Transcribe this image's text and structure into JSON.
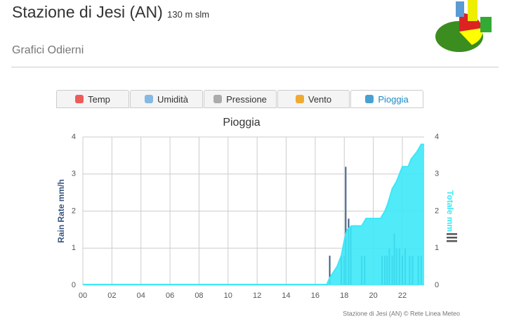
{
  "header": {
    "title": "Stazione di Jesi (AN)",
    "altitude": "130 m slm",
    "subtitle": "Grafici Odierni"
  },
  "tabs": [
    {
      "label": "Temp"
    },
    {
      "label": "Umidità"
    },
    {
      "label": "Pressione"
    },
    {
      "label": "Vento"
    },
    {
      "label": "Pioggia"
    }
  ],
  "chart_data": {
    "type": "bar-area",
    "title": "Pioggia",
    "y_label": "Rain Rate mm/h",
    "y2_label": "Totale mm",
    "credit": "Stazione di Jesi (AN) © Rete Linea Meteo",
    "xlim": [
      0,
      23.5
    ],
    "xticks": [
      {
        "value": 0,
        "label": "00"
      },
      {
        "value": 2,
        "label": "02"
      },
      {
        "value": 4,
        "label": "04"
      },
      {
        "value": 6,
        "label": "06"
      },
      {
        "value": 8,
        "label": "08"
      },
      {
        "value": 10,
        "label": "10"
      },
      {
        "value": 12,
        "label": "12"
      },
      {
        "value": 14,
        "label": "14"
      },
      {
        "value": 16,
        "label": "16"
      },
      {
        "value": 18,
        "label": "18"
      },
      {
        "value": 20,
        "label": "20"
      },
      {
        "value": 22,
        "label": "22"
      }
    ],
    "ylim": [
      0,
      4
    ],
    "yticks": [
      0,
      1,
      2,
      3,
      4
    ],
    "y2lim": [
      0,
      4
    ],
    "y2ticks": [
      0,
      1,
      2,
      3,
      4
    ],
    "grid": true,
    "series": [
      {
        "name": "Rain Rate",
        "type": "bar",
        "color": "#35557f",
        "x": [
          17.0,
          17.8,
          18.0,
          18.1,
          18.3,
          18.45,
          19.2,
          19.4,
          20.6,
          20.8,
          20.95,
          21.1,
          21.3,
          21.45,
          21.6,
          21.8,
          22.0,
          22.2,
          22.5,
          22.7,
          23.1,
          23.3
        ],
        "values": [
          0.8,
          0.8,
          0.8,
          3.2,
          1.8,
          1.6,
          0.8,
          0.8,
          0.8,
          0.8,
          0.8,
          1.0,
          0.8,
          1.4,
          1.0,
          1.0,
          0.8,
          1.0,
          0.8,
          0.8,
          0.8,
          0.8
        ]
      },
      {
        "name": "Totale",
        "type": "area",
        "axis": "y2",
        "color": "#3de8f8",
        "x": [
          0,
          16.8,
          17.0,
          17.5,
          17.8,
          18.0,
          18.2,
          18.5,
          19.2,
          19.5,
          20.5,
          20.8,
          21.0,
          21.3,
          21.6,
          22.0,
          22.4,
          22.6,
          23.0,
          23.3,
          23.5
        ],
        "values": [
          0.02,
          0.02,
          0.2,
          0.5,
          0.8,
          1.2,
          1.5,
          1.6,
          1.6,
          1.8,
          1.8,
          2.0,
          2.2,
          2.6,
          2.8,
          3.2,
          3.2,
          3.4,
          3.6,
          3.8,
          3.8
        ]
      }
    ]
  }
}
